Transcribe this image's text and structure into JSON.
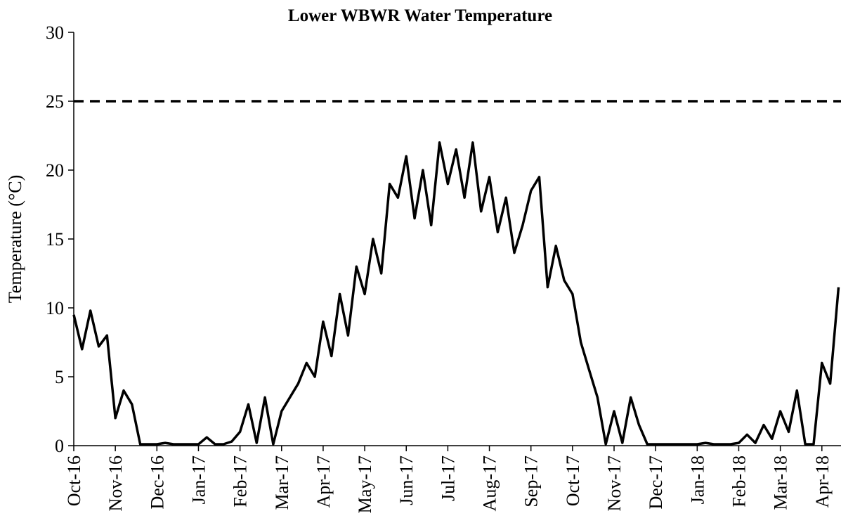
{
  "chart_data": {
    "type": "line",
    "title": "Lower WBWR Water Temperature",
    "y_label": "Temperature (°C)",
    "xlim": [
      0,
      18.46
    ],
    "xticks": [
      {
        "value": 0,
        "label": "Oct-16"
      },
      {
        "value": 1,
        "label": "Nov-16"
      },
      {
        "value": 2,
        "label": "Dec-16"
      },
      {
        "value": 3,
        "label": "Jan-17"
      },
      {
        "value": 4,
        "label": "Feb-17"
      },
      {
        "value": 5,
        "label": "Mar-17"
      },
      {
        "value": 6,
        "label": "Apr-17"
      },
      {
        "value": 7,
        "label": "May-17"
      },
      {
        "value": 8,
        "label": "Jun-17"
      },
      {
        "value": 9,
        "label": "Jul-17"
      },
      {
        "value": 10,
        "label": "Aug-17"
      },
      {
        "value": 11,
        "label": "Sep-17"
      },
      {
        "value": 12,
        "label": "Oct-17"
      },
      {
        "value": 13,
        "label": "Nov-17"
      },
      {
        "value": 14,
        "label": "Dec-17"
      },
      {
        "value": 15,
        "label": "Jan-18"
      },
      {
        "value": 16,
        "label": "Feb-18"
      },
      {
        "value": 17,
        "label": "Mar-18"
      },
      {
        "value": 18,
        "label": "Apr-18"
      }
    ],
    "ylim": [
      0,
      30
    ],
    "yticks": [
      0,
      5,
      10,
      15,
      20,
      25,
      30
    ],
    "reference_line": 25,
    "x": [
      0.0,
      0.2,
      0.4,
      0.6,
      0.8,
      1.0,
      1.2,
      1.4,
      1.6,
      1.8,
      2.0,
      2.2,
      2.4,
      2.6,
      2.8,
      3.0,
      3.2,
      3.4,
      3.6,
      3.8,
      4.0,
      4.2,
      4.4,
      4.6,
      4.8,
      5.0,
      5.2,
      5.4,
      5.6,
      5.8,
      6.0,
      6.2,
      6.4,
      6.6,
      6.8,
      7.0,
      7.2,
      7.4,
      7.6,
      7.8,
      8.0,
      8.2,
      8.4,
      8.6,
      8.8,
      9.0,
      9.2,
      9.4,
      9.6,
      9.8,
      10.0,
      10.2,
      10.4,
      10.6,
      10.8,
      11.0,
      11.2,
      11.4,
      11.6,
      11.8,
      12.0,
      12.2,
      12.4,
      12.6,
      12.8,
      13.0,
      13.2,
      13.4,
      13.6,
      13.8,
      14.0,
      14.2,
      14.4,
      14.6,
      14.8,
      15.0,
      15.2,
      15.4,
      15.6,
      15.8,
      16.0,
      16.2,
      16.4,
      16.6,
      16.8,
      17.0,
      17.2,
      17.4,
      17.6,
      17.8,
      18.0,
      18.2,
      18.4
    ],
    "series": [
      {
        "name": "Lower WBWR",
        "color": "#000000",
        "values": [
          9.5,
          7.0,
          9.8,
          7.2,
          8.0,
          2.0,
          4.0,
          3.0,
          0.1,
          0.1,
          0.1,
          0.2,
          0.1,
          0.1,
          0.1,
          0.1,
          0.6,
          0.1,
          0.1,
          0.3,
          1.0,
          3.0,
          0.2,
          3.5,
          0.1,
          2.5,
          3.5,
          4.5,
          6.0,
          5.0,
          9.0,
          6.5,
          11.0,
          8.0,
          13.0,
          11.0,
          15.0,
          12.5,
          19.0,
          18.0,
          21.0,
          16.5,
          20.0,
          16.0,
          22.0,
          19.0,
          21.5,
          18.0,
          22.0,
          17.0,
          19.5,
          15.5,
          18.0,
          14.0,
          16.0,
          18.5,
          19.5,
          11.5,
          14.5,
          12.0,
          11.0,
          7.5,
          5.5,
          3.5,
          0.1,
          2.5,
          0.2,
          3.5,
          1.5,
          0.1,
          0.1,
          0.1,
          0.1,
          0.1,
          0.1,
          0.1,
          0.2,
          0.1,
          0.1,
          0.1,
          0.2,
          0.8,
          0.2,
          1.5,
          0.5,
          2.5,
          1.0,
          4.0,
          0.1,
          0.1,
          6.0,
          4.5,
          11.5
        ]
      }
    ]
  }
}
